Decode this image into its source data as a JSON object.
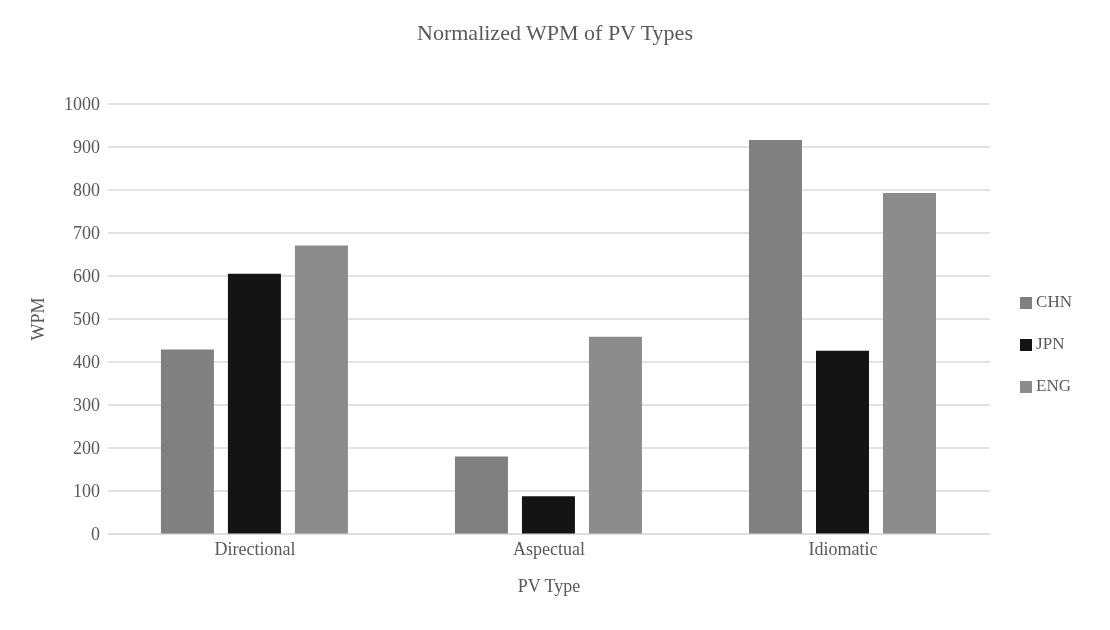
{
  "chart_data": {
    "type": "bar",
    "title": "Normalized WPM of PV Types",
    "xlabel": "PV Type",
    "ylabel": "WPM",
    "categories": [
      "Directional",
      "Aspectual",
      "Idiomatic"
    ],
    "series": [
      {
        "name": "CHN",
        "color": "#808080",
        "values": [
          429,
          180,
          916
        ]
      },
      {
        "name": "JPN",
        "color": "#141414",
        "values": [
          605,
          88,
          426
        ]
      },
      {
        "name": "ENG",
        "color": "#8c8c8c",
        "values": [
          671,
          459,
          793
        ]
      }
    ],
    "ylim": [
      0,
      1000
    ],
    "yticks": [
      0,
      100,
      200,
      300,
      400,
      500,
      600,
      700,
      800,
      900,
      1000
    ],
    "grid": "y",
    "legend": "right"
  }
}
